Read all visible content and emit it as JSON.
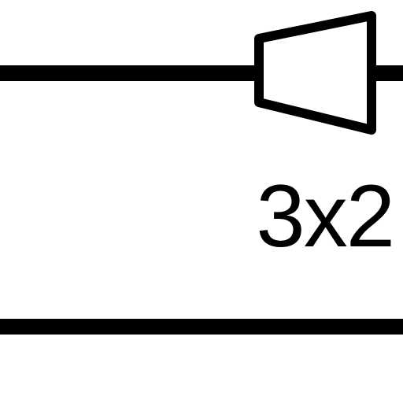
{
  "diagram": {
    "label": "3x2",
    "colors": {
      "line": "#000000",
      "background": "#ffffff",
      "fill": "#ffffff"
    },
    "elements": [
      "top-line",
      "cone-shape",
      "label-3x2",
      "bottom-line"
    ]
  }
}
